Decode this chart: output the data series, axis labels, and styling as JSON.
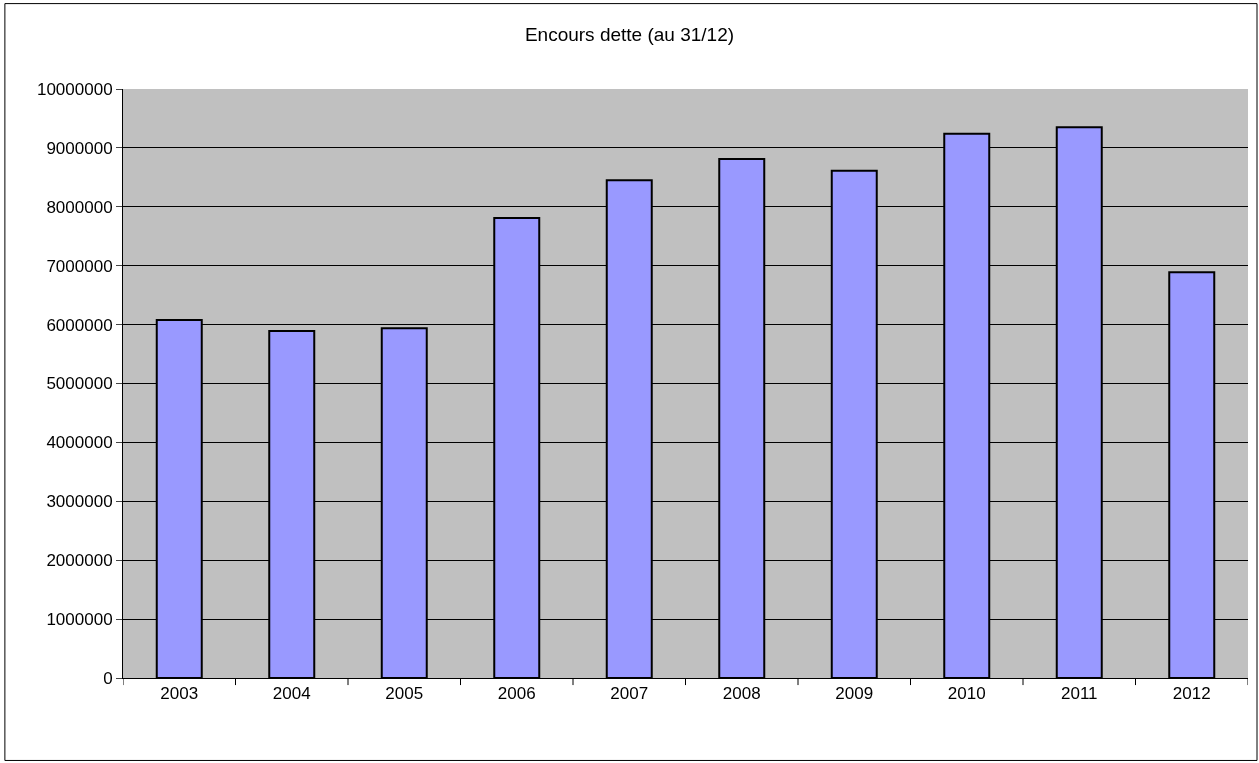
{
  "chart_data": {
    "type": "bar",
    "title": "Encours dette (au 31/12)",
    "categories": [
      "2003",
      "2004",
      "2005",
      "2006",
      "2007",
      "2008",
      "2009",
      "2010",
      "2011",
      "2012"
    ],
    "values": [
      6080000,
      5890000,
      5940000,
      7810000,
      8450000,
      8810000,
      8610000,
      9240000,
      9350000,
      6890000
    ],
    "color": "#9999ff",
    "ylim": [
      0,
      10000000
    ],
    "yticks": [
      0,
      1000000,
      2000000,
      3000000,
      4000000,
      5000000,
      6000000,
      7000000,
      8000000,
      9000000,
      10000000
    ],
    "grid": "y"
  }
}
